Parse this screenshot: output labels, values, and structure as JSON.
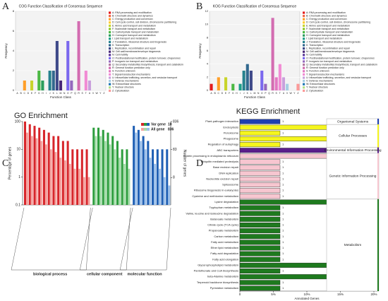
{
  "chart_data": [
    {
      "type": "bar",
      "panel": "A",
      "title": "COG Function Classification of Consensus Sequence",
      "xlabel": "Function Class",
      "ylabel": "Frequency",
      "categories": [
        "A",
        "B",
        "C",
        "D",
        "E",
        "F",
        "G",
        "H",
        "I",
        "J",
        "K",
        "L",
        "M",
        "N",
        "O",
        "P",
        "Q",
        "R",
        "S",
        "T",
        "U",
        "V",
        "W",
        "Y",
        "Z"
      ],
      "legend": [
        "A: RNA processing and modification",
        "B: Chromatin structure and dynamics",
        "C: Energy production and conversion",
        "D: Cell cycle control, cell division, chromosome partitioning",
        "E: Amino acid transport and metabolism",
        "F: Nucleotide transport and metabolism",
        "G: Carbohydrate transport and metabolism",
        "H: Coenzyme transport and metabolism",
        "I: Lipid transport and metabolism",
        "J: Translation, ribosomal structure and biogenesis",
        "K: Transcription",
        "L: Replication, recombination and repair",
        "M: Cell wall/membrane/envelope biogenesis",
        "N: Cell motility",
        "O: Posttranslational modification, protein turnover, chaperones",
        "P: Inorganic ion transport and metabolism",
        "Q: Secondary metabolites biosynthesis, transport and catabolism",
        "R: General function prediction only",
        "S: Function unknown",
        "T: Signal transduction mechanisms",
        "U: Intracellular trafficking, secretion, and vesicular transport",
        "V: Defense mechanisms",
        "W: Extracellular structures",
        "Y: Nuclear structure",
        "Z: Cytoskeleton"
      ],
      "values": [
        0,
        0,
        1,
        0,
        1,
        0,
        2,
        1,
        0,
        2,
        2,
        5,
        1,
        0,
        5,
        1,
        0,
        7,
        0,
        2,
        1,
        0,
        0,
        0,
        0
      ],
      "colors": [
        "#e41a1c",
        "#f2684a",
        "#ff9f29",
        "#ffcc33",
        "#c8d42c",
        "#8ac926",
        "#4cb944",
        "#2a9d5c",
        "#1f9e89",
        "#26828e",
        "#31688e",
        "#3e4989",
        "#482878",
        "#5e3c99",
        "#7b68ee",
        "#9467bd",
        "#b07aa1",
        "#d36cb1",
        "#e377c2",
        "#f18bd4",
        "#c9a0dc",
        "#a6cee3",
        "#1f78b4",
        "#b2df8a",
        "#fb9a99"
      ],
      "ylim": [
        0,
        8
      ],
      "yticks": [
        0,
        2,
        4,
        6,
        8
      ],
      "grid": true
    },
    {
      "type": "bar",
      "panel": "B",
      "title": "KOG Function Classification of Consensus Sequence",
      "xlabel": "Function Class",
      "ylabel": "Frequency",
      "categories": [
        "A",
        "B",
        "C",
        "D",
        "E",
        "F",
        "G",
        "H",
        "I",
        "J",
        "K",
        "L",
        "M",
        "N",
        "O",
        "P",
        "Q",
        "R",
        "S",
        "T",
        "U",
        "V",
        "W",
        "Y",
        "Z"
      ],
      "legend": [
        "A: RNA processing and modification",
        "B: Chromatin structure and dynamics",
        "C: Energy production and conversion",
        "D: Cell cycle control, cell division, chromosome partitioning",
        "E: Amino acid transport and metabolism",
        "F: Nucleotide transport and metabolism",
        "G: Carbohydrate transport and metabolism",
        "H: Coenzyme transport and metabolism",
        "I: Lipid transport and metabolism",
        "J: Translation, ribosomal structure and biogenesis",
        "K: Transcription",
        "L: Replication, recombination and repair",
        "M: Cell wall/membrane/envelope biogenesis",
        "N: Cell motility",
        "O: Posttranslational modification, protein turnover, chaperones",
        "P: Inorganic ion transport and metabolism",
        "Q: Secondary metabolites biosynthesis, transport and catabolism",
        "R: General function prediction only",
        "S: Function unknown",
        "T: Signal transduction mechanisms",
        "U: Intracellular trafficking, secretion, and vesicular transport",
        "V: Defense mechanisms",
        "W: Extracellular structures",
        "Y: Nuclear structure",
        "Z: Cytoskeleton"
      ],
      "values": [
        1,
        0,
        2,
        0,
        2,
        0,
        1,
        0,
        1,
        3,
        4,
        3,
        0,
        0,
        3,
        1,
        0,
        11,
        2,
        4,
        2,
        1,
        0,
        0,
        1
      ],
      "colors": [
        "#e41a1c",
        "#f2684a",
        "#ff9f29",
        "#ffcc33",
        "#c8d42c",
        "#8ac926",
        "#4cb944",
        "#2a9d5c",
        "#1f9e89",
        "#26828e",
        "#31688e",
        "#3e4989",
        "#482878",
        "#5e3c99",
        "#7b68ee",
        "#9467bd",
        "#b07aa1",
        "#d36cb1",
        "#e377c2",
        "#f18bd4",
        "#c9a0dc",
        "#a6cee3",
        "#1f78b4",
        "#b2df8a",
        "#fb9a99"
      ],
      "ylim": [
        0,
        12
      ],
      "yticks": [
        0,
        2,
        4,
        6,
        8,
        10,
        12
      ],
      "grid": true
    },
    {
      "type": "go",
      "panel": "C",
      "title": "GO Enrichment",
      "ylabel": "Percentage of genes",
      "y2label": "Number of genes",
      "log": true,
      "ylim": [
        0.1,
        100
      ],
      "yticks": [
        0.1,
        1,
        10,
        100
      ],
      "y2lim": [
        0.836,
        836
      ],
      "y2ticks": [
        8,
        83,
        836
      ],
      "legend": [
        {
          "name": "Var gene",
          "total": 10
        },
        {
          "name": "All gene",
          "total": 836
        }
      ],
      "groups": [
        {
          "name": "biological process",
          "color": "#d7262b",
          "light_color": "#f4a3a0",
          "var": [
            100,
            80,
            70,
            60,
            50,
            40,
            30,
            30,
            20,
            20,
            10,
            10,
            10,
            10
          ],
          "all": [
            40,
            30,
            25,
            20,
            15,
            10,
            8,
            5,
            4,
            3,
            2,
            2,
            1,
            1
          ]
        },
        {
          "name": "cellular component",
          "color": "#2e9e3e",
          "light_color": "#a4dca9",
          "var": [
            60,
            60,
            50,
            40,
            30,
            20,
            10,
            10
          ],
          "all": [
            30,
            30,
            20,
            15,
            10,
            5,
            3,
            2
          ]
        },
        {
          "name": "molecular function",
          "color": "#1f5fb4",
          "light_color": "#9cc0ea",
          "var": [
            70,
            50,
            30,
            20,
            10,
            10,
            10,
            10
          ],
          "all": [
            40,
            20,
            10,
            5,
            3,
            2,
            1,
            0.5
          ]
        }
      ]
    },
    {
      "type": "barh",
      "panel": "D",
      "title": "KEGG Enrichment",
      "xlabel": "Annotated Genes",
      "xlim": [
        0,
        20
      ],
      "xticks": [
        0,
        {
          "value": 5,
          "label": "5%"
        },
        {
          "value": 10,
          "label": "10%"
        },
        {
          "value": 15,
          "label": "15%"
        },
        {
          "value": 20,
          "label": "20%"
        }
      ],
      "groups": [
        {
          "name": "Organismal Systems",
          "color": "#1f3fb0",
          "categories": [
            "Plant-pathogen interaction"
          ],
          "values": [
            6
          ],
          "counts": [
            1
          ]
        },
        {
          "name": "Cellular Processes",
          "color": "#f5f51e",
          "categories": [
            "Endocytosis",
            "Peroxisome",
            "Phagosome",
            "Regulation of autophagy"
          ],
          "values": [
            13,
            6,
            13,
            6
          ],
          "counts": [
            2,
            1,
            2,
            1
          ]
        },
        {
          "name": "Environmental Information Processing",
          "color": "#5a1e8c",
          "categories": [
            "ABC transporters"
          ],
          "values": [
            13
          ],
          "counts": [
            2
          ]
        },
        {
          "name": "Genetic Information Processing",
          "color": "#f7c6d0",
          "categories": [
            "Protein processing in endoplasmic reticulum",
            "Ubiquitin mediated proteolysis",
            "Base excision repair",
            "DNA replication",
            "Nucleotide excision repair",
            "Spliceosome",
            "Ribosome biogenesis in eukaryotes",
            "Cysteine and methionine metabolism"
          ],
          "values": [
            13,
            6,
            6,
            6,
            6,
            6,
            6,
            6
          ],
          "counts": [
            2,
            1,
            1,
            1,
            1,
            1,
            1,
            1
          ]
        },
        {
          "name": "Metabolism",
          "color": "#1e7a1e",
          "categories": [
            "Lysine degradation",
            "Tryptophan metabolism",
            "Valine, leucine and isoleucine degradation",
            "Butanoate metabolism",
            "Citrate cycle (TCA cycle)",
            "Propanoate metabolism",
            "Carbon metabolism",
            "Fatty acid metabolism",
            "Ether lipid metabolism",
            "Fatty acid degradation",
            "Fatty acid elongation",
            "Glycerophospholipid metabolism",
            "Pantothenate and CoA biosynthesis",
            "beta-Alanine metabolism",
            "Terpenoid backbone biosynthesis",
            "Pyrimidine metabolism"
          ],
          "values": [
            13,
            6,
            6,
            6,
            6,
            6,
            6,
            6,
            6,
            6,
            6,
            13,
            6,
            13,
            6,
            6
          ],
          "counts": [
            2,
            1,
            1,
            1,
            1,
            1,
            1,
            1,
            1,
            1,
            1,
            2,
            1,
            2,
            1,
            1
          ]
        }
      ]
    }
  ]
}
